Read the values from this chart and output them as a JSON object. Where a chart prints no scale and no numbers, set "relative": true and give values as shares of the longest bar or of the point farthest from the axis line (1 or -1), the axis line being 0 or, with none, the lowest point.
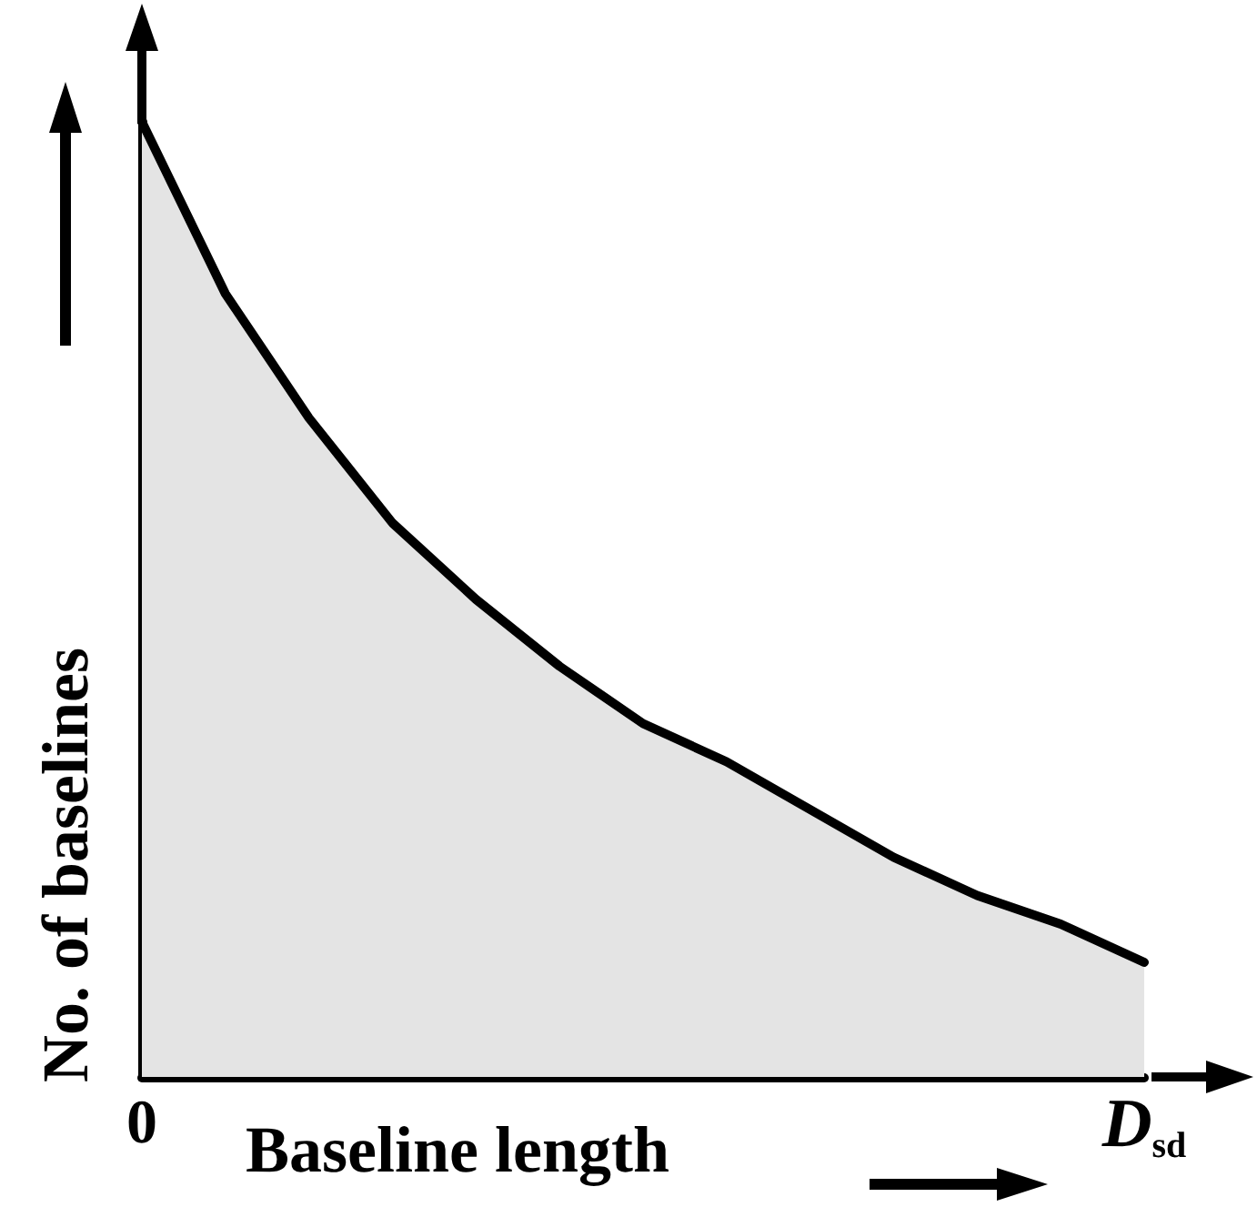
{
  "chart_data": {
    "type": "area",
    "relative": true,
    "xlabel": "Baseline length",
    "ylabel": "No. of baselines",
    "categories": [
      "0",
      null,
      null,
      null,
      null,
      null,
      null,
      null,
      null,
      null,
      null,
      null,
      "D$_{sd}$"
    ],
    "series": [
      {
        "color": "#000000",
        "values": [
          1.0,
          0.82,
          0.69,
          0.58,
          0.5,
          0.43,
          0.37,
          0.33,
          0.28,
          0.23,
          0.19,
          0.16,
          0.12
        ]
      }
    ]
  }
}
